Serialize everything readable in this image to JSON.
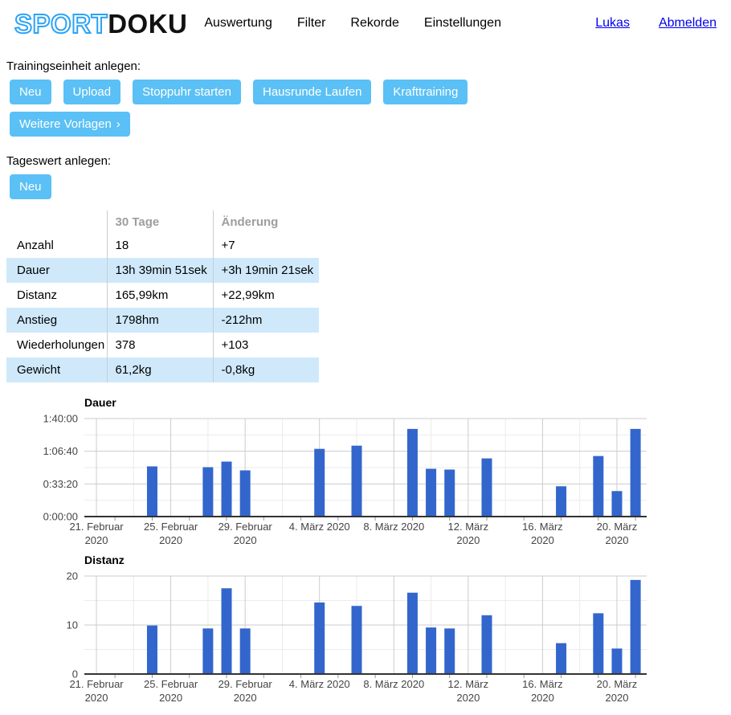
{
  "header": {
    "logo_part1": "SPORT",
    "logo_part2": "DOKU",
    "nav_items": [
      "Auswertung",
      "Filter",
      "Rekorde",
      "Einstellungen"
    ],
    "user_items": [
      "Lukas",
      "Abmelden"
    ]
  },
  "training_section": {
    "label": "Trainingseinheit anlegen:",
    "buttons": [
      "Neu",
      "Upload",
      "Stoppuhr starten",
      "Hausrunde Laufen",
      "Krafttraining"
    ],
    "more_button": {
      "label": "Weitere Vorlagen",
      "chevron": "›"
    }
  },
  "daily_section": {
    "label": "Tageswert anlegen:",
    "buttons": [
      "Neu"
    ]
  },
  "stats_table": {
    "columns": [
      "30 Tage",
      "Änderung"
    ],
    "rows": [
      {
        "label": "Anzahl",
        "value": "18",
        "change": "+7"
      },
      {
        "label": "Dauer",
        "value": "13h 39min 51sek",
        "change": "+3h 19min 21sek"
      },
      {
        "label": "Distanz",
        "value": "165,99km",
        "change": "+22,99km"
      },
      {
        "label": "Anstieg",
        "value": "1798hm",
        "change": "-212hm"
      },
      {
        "label": "Wiederholungen",
        "value": "378",
        "change": "+103"
      },
      {
        "label": "Gewicht",
        "value": "61,2kg",
        "change": "-0,8kg"
      }
    ]
  },
  "colors": {
    "accent_button_blue": "#5bc0f5",
    "logo_blue": "#2aa3f5",
    "bar_blue": "#3366cc",
    "row_highlight_blue": "#cfe9fb",
    "grid_major": "#cccccc",
    "grid_minor": "#ebebeb",
    "axis_line": "#333333",
    "axis_label": "#444444"
  },
  "chart_data": [
    {
      "type": "bar",
      "title": "Dauer",
      "value_unit": "duration h:mm:ss",
      "ylim": [
        0,
        6000
      ],
      "y_major_ticks": [
        {
          "value": 0,
          "label": "0:00:00"
        },
        {
          "value": 2000,
          "label": "0:33:20"
        },
        {
          "value": 4000,
          "label": "1:06:40"
        },
        {
          "value": 6000,
          "label": "1:40:00"
        }
      ],
      "y_minor_values": [
        1000,
        3000,
        5000
      ],
      "x_range_days": [
        -0.65,
        29.6
      ],
      "x_major_ticks": [
        {
          "day": 0,
          "label_lines": [
            "21. Februar",
            "2020"
          ]
        },
        {
          "day": 4,
          "label_lines": [
            "25. Februar",
            "2020"
          ]
        },
        {
          "day": 8,
          "label_lines": [
            "29. Februar",
            "2020"
          ]
        },
        {
          "day": 12,
          "label_lines": [
            "4. März 2020"
          ]
        },
        {
          "day": 16,
          "label_lines": [
            "8. März 2020"
          ]
        },
        {
          "day": 20,
          "label_lines": [
            "12. März",
            "2020"
          ]
        },
        {
          "day": 24,
          "label_lines": [
            "16. März",
            "2020"
          ]
        },
        {
          "day": 28,
          "label_lines": [
            "20. März",
            "2020"
          ]
        }
      ],
      "x_minor_days": [
        2,
        6,
        10,
        14,
        18,
        22,
        26
      ],
      "bars": [
        {
          "date": "24. Februar 2020",
          "day": 3,
          "value": 3073,
          "label": "0:51:13"
        },
        {
          "date": "27. Februar 2020",
          "day": 6,
          "value": 3024,
          "label": "0:50:24"
        },
        {
          "date": "28. Februar 2020",
          "day": 7,
          "value": 3366,
          "label": "0:56:06"
        },
        {
          "date": "29. Februar 2020",
          "day": 8,
          "value": 2829,
          "label": "0:47:09"
        },
        {
          "date": "4. März 2020",
          "day": 12,
          "value": 4146,
          "label": "1:09:06"
        },
        {
          "date": "6. März 2020",
          "day": 14,
          "value": 4341,
          "label": "1:12:21"
        },
        {
          "date": "9. März 2020",
          "day": 17,
          "value": 5366,
          "label": "1:29:26"
        },
        {
          "date": "10. März 2020",
          "day": 18,
          "value": 2927,
          "label": "0:48:47"
        },
        {
          "date": "11. März 2020",
          "day": 19,
          "value": 2878,
          "label": "0:47:58"
        },
        {
          "date": "13. März 2020",
          "day": 21,
          "value": 3561,
          "label": "0:59:21"
        },
        {
          "date": "17. März 2020",
          "day": 25,
          "value": 1854,
          "label": "0:30:54"
        },
        {
          "date": "19. März 2020",
          "day": 27,
          "value": 3707,
          "label": "1:01:47"
        },
        {
          "date": "20. März 2020",
          "day": 28,
          "value": 1561,
          "label": "0:26:01"
        },
        {
          "date": "21. März 2020",
          "day": 29,
          "value": 5366,
          "label": "1:29:26"
        }
      ]
    },
    {
      "type": "bar",
      "title": "Distanz",
      "value_unit": "km",
      "ylim": [
        0,
        20
      ],
      "y_major_ticks": [
        {
          "value": 0,
          "label": "0"
        },
        {
          "value": 10,
          "label": "10"
        },
        {
          "value": 20,
          "label": "20"
        }
      ],
      "y_minor_values": [
        5,
        15
      ],
      "x_range_days": [
        -0.65,
        29.6
      ],
      "x_major_ticks": [
        {
          "day": 0,
          "label_lines": [
            "21. Februar",
            "2020"
          ]
        },
        {
          "day": 4,
          "label_lines": [
            "25. Februar",
            "2020"
          ]
        },
        {
          "day": 8,
          "label_lines": [
            "29. Februar",
            "2020"
          ]
        },
        {
          "day": 12,
          "label_lines": [
            "4. März 2020"
          ]
        },
        {
          "day": 16,
          "label_lines": [
            "8. März 2020"
          ]
        },
        {
          "day": 20,
          "label_lines": [
            "12. März",
            "2020"
          ]
        },
        {
          "day": 24,
          "label_lines": [
            "16. März",
            "2020"
          ]
        },
        {
          "day": 28,
          "label_lines": [
            "20. März",
            "2020"
          ]
        }
      ],
      "x_minor_days": [
        2,
        6,
        10,
        14,
        18,
        22,
        26
      ],
      "bars": [
        {
          "date": "24. Februar 2020",
          "day": 3,
          "value": 9.9,
          "label": "9,9"
        },
        {
          "date": "27. Februar 2020",
          "day": 6,
          "value": 9.3,
          "label": "9,3"
        },
        {
          "date": "28. Februar 2020",
          "day": 7,
          "value": 17.5,
          "label": "17,5"
        },
        {
          "date": "29. Februar 2020",
          "day": 8,
          "value": 9.3,
          "label": "9,3"
        },
        {
          "date": "4. März 2020",
          "day": 12,
          "value": 14.6,
          "label": "14,6"
        },
        {
          "date": "6. März 2020",
          "day": 14,
          "value": 13.9,
          "label": "13,9"
        },
        {
          "date": "9. März 2020",
          "day": 17,
          "value": 16.6,
          "label": "16,6"
        },
        {
          "date": "10. März 2020",
          "day": 18,
          "value": 9.5,
          "label": "9,5"
        },
        {
          "date": "11. März 2020",
          "day": 19,
          "value": 9.3,
          "label": "9,3"
        },
        {
          "date": "13. März 2020",
          "day": 21,
          "value": 12.0,
          "label": "12,0"
        },
        {
          "date": "17. März 2020",
          "day": 25,
          "value": 6.3,
          "label": "6,3"
        },
        {
          "date": "19. März 2020",
          "day": 27,
          "value": 12.4,
          "label": "12,4"
        },
        {
          "date": "20. März 2020",
          "day": 28,
          "value": 5.2,
          "label": "5,2"
        },
        {
          "date": "21. März 2020",
          "day": 29,
          "value": 19.2,
          "label": "19,2"
        }
      ]
    }
  ]
}
